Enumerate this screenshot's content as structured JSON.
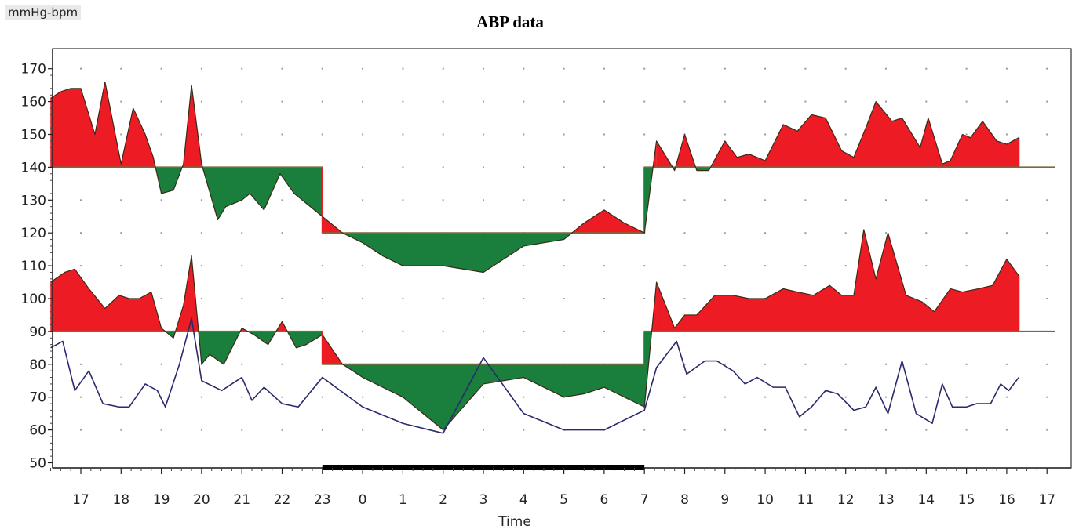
{
  "unit_label": "mmHg-bpm",
  "chart_data": {
    "type": "area",
    "title": "ABP data",
    "xlabel": "Time",
    "ylabel": "mmHg-bpm",
    "ylim": [
      50,
      170
    ],
    "xlim": [
      16.2,
      41.2
    ],
    "grid": true,
    "y_ticks": [
      50,
      60,
      70,
      80,
      90,
      100,
      110,
      120,
      130,
      140,
      150,
      160,
      170
    ],
    "x_ticks": [
      {
        "x": 17,
        "label": "17"
      },
      {
        "x": 18,
        "label": "18"
      },
      {
        "x": 19,
        "label": "19"
      },
      {
        "x": 20,
        "label": "20"
      },
      {
        "x": 21,
        "label": "21"
      },
      {
        "x": 22,
        "label": "22"
      },
      {
        "x": 23,
        "label": "23"
      },
      {
        "x": 24,
        "label": "0"
      },
      {
        "x": 25,
        "label": "1"
      },
      {
        "x": 26,
        "label": "2"
      },
      {
        "x": 27,
        "label": "3"
      },
      {
        "x": 28,
        "label": "4"
      },
      {
        "x": 29,
        "label": "5"
      },
      {
        "x": 30,
        "label": "6"
      },
      {
        "x": 31,
        "label": "7"
      },
      {
        "x": 32,
        "label": "8"
      },
      {
        "x": 33,
        "label": "9"
      },
      {
        "x": 34,
        "label": "10"
      },
      {
        "x": 35,
        "label": "11"
      },
      {
        "x": 36,
        "label": "12"
      },
      {
        "x": 37,
        "label": "13"
      },
      {
        "x": 38,
        "label": "14"
      },
      {
        "x": 39,
        "label": "15"
      },
      {
        "x": 40,
        "label": "16"
      },
      {
        "x": 41,
        "label": "17"
      }
    ],
    "sleep_period": [
      23,
      31
    ],
    "colors": {
      "above": "#ed1c24",
      "below": "#1a7f3c",
      "threshold": "#7a6a3a",
      "heart_rate": "#2a2a6e"
    },
    "thresholds": {
      "systolic": {
        "day": 140,
        "night": 120
      },
      "diastolic": {
        "day": 90,
        "night": 80
      }
    },
    "series": [
      {
        "key": "systolic",
        "points": [
          [
            16.25,
            161
          ],
          [
            16.5,
            163
          ],
          [
            16.75,
            164
          ],
          [
            17,
            164
          ],
          [
            17.35,
            150
          ],
          [
            17.6,
            166
          ],
          [
            18,
            141
          ],
          [
            18.3,
            158
          ],
          [
            18.6,
            150
          ],
          [
            18.8,
            143
          ],
          [
            19,
            132
          ],
          [
            19.3,
            133
          ],
          [
            19.55,
            141
          ],
          [
            19.75,
            165
          ],
          [
            20,
            141
          ],
          [
            20.4,
            124
          ],
          [
            20.6,
            128
          ],
          [
            21,
            130
          ],
          [
            21.2,
            132
          ],
          [
            21.55,
            127
          ],
          [
            21.95,
            138
          ],
          [
            22.3,
            132
          ],
          [
            22.7,
            128
          ],
          [
            23,
            125
          ],
          [
            23.5,
            120
          ],
          [
            24,
            117
          ],
          [
            24.5,
            113
          ],
          [
            25,
            110
          ],
          [
            26,
            110
          ],
          [
            27,
            108
          ],
          [
            28,
            116
          ],
          [
            29,
            118
          ],
          [
            29.5,
            123
          ],
          [
            30,
            127
          ],
          [
            30.5,
            123
          ],
          [
            31,
            120
          ],
          [
            31.3,
            148
          ],
          [
            31.75,
            139
          ],
          [
            32,
            150
          ],
          [
            32.3,
            139
          ],
          [
            32.6,
            139
          ],
          [
            33,
            148
          ],
          [
            33.3,
            143
          ],
          [
            33.6,
            144
          ],
          [
            34,
            142
          ],
          [
            34.45,
            153
          ],
          [
            34.8,
            151
          ],
          [
            35.15,
            156
          ],
          [
            35.5,
            155
          ],
          [
            35.9,
            145
          ],
          [
            36.2,
            143
          ],
          [
            36.5,
            152
          ],
          [
            36.75,
            160
          ],
          [
            37.15,
            154
          ],
          [
            37.4,
            155
          ],
          [
            37.85,
            146
          ],
          [
            38.05,
            155
          ],
          [
            38.4,
            141
          ],
          [
            38.6,
            142
          ],
          [
            38.9,
            150
          ],
          [
            39.1,
            149
          ],
          [
            39.4,
            154
          ],
          [
            39.75,
            148
          ],
          [
            40,
            147
          ],
          [
            40.3,
            149
          ]
        ]
      },
      {
        "key": "diastolic",
        "points": [
          [
            16.25,
            105
          ],
          [
            16.6,
            108
          ],
          [
            16.85,
            109
          ],
          [
            17.2,
            103
          ],
          [
            17.6,
            97
          ],
          [
            17.95,
            101
          ],
          [
            18.2,
            100
          ],
          [
            18.45,
            100
          ],
          [
            18.75,
            102
          ],
          [
            19,
            91
          ],
          [
            19.3,
            88
          ],
          [
            19.55,
            98
          ],
          [
            19.75,
            113
          ],
          [
            20,
            80
          ],
          [
            20.2,
            83
          ],
          [
            20.55,
            80
          ],
          [
            21,
            91
          ],
          [
            21.3,
            89
          ],
          [
            21.65,
            86
          ],
          [
            22,
            93
          ],
          [
            22.35,
            85
          ],
          [
            22.6,
            86
          ],
          [
            23,
            89
          ],
          [
            23.5,
            80
          ],
          [
            24,
            76
          ],
          [
            25,
            70
          ],
          [
            26,
            60
          ],
          [
            27,
            74
          ],
          [
            28,
            76
          ],
          [
            29,
            70
          ],
          [
            29.5,
            71
          ],
          [
            30,
            73
          ],
          [
            30.5,
            70
          ],
          [
            31,
            67
          ],
          [
            31.3,
            105
          ],
          [
            31.75,
            91
          ],
          [
            32,
            95
          ],
          [
            32.3,
            95
          ],
          [
            32.75,
            101
          ],
          [
            33.2,
            101
          ],
          [
            33.6,
            100
          ],
          [
            34,
            100
          ],
          [
            34.45,
            103
          ],
          [
            34.8,
            102
          ],
          [
            35.2,
            101
          ],
          [
            35.6,
            104
          ],
          [
            35.9,
            101
          ],
          [
            36.2,
            101
          ],
          [
            36.45,
            121
          ],
          [
            36.75,
            106
          ],
          [
            37.05,
            120
          ],
          [
            37.5,
            101
          ],
          [
            37.9,
            99
          ],
          [
            38.2,
            96
          ],
          [
            38.6,
            103
          ],
          [
            38.9,
            102
          ],
          [
            39.3,
            103
          ],
          [
            39.65,
            104
          ],
          [
            40,
            112
          ],
          [
            40.3,
            107
          ]
        ]
      },
      {
        "key": "heart_rate",
        "points": [
          [
            16.25,
            85
          ],
          [
            16.55,
            87
          ],
          [
            16.85,
            72
          ],
          [
            17.2,
            78
          ],
          [
            17.55,
            68
          ],
          [
            17.95,
            67
          ],
          [
            18.2,
            67
          ],
          [
            18.6,
            74
          ],
          [
            18.9,
            72
          ],
          [
            19.1,
            67
          ],
          [
            19.45,
            80
          ],
          [
            19.75,
            94
          ],
          [
            20,
            75
          ],
          [
            20.5,
            72
          ],
          [
            21,
            76
          ],
          [
            21.25,
            69
          ],
          [
            21.55,
            73
          ],
          [
            22,
            68
          ],
          [
            22.4,
            67
          ],
          [
            23,
            76
          ],
          [
            24,
            67
          ],
          [
            25,
            62
          ],
          [
            26,
            59
          ],
          [
            27,
            82
          ],
          [
            28,
            65
          ],
          [
            29,
            60
          ],
          [
            30,
            60
          ],
          [
            31,
            66
          ],
          [
            31.3,
            79
          ],
          [
            31.8,
            87
          ],
          [
            32.05,
            77
          ],
          [
            32.5,
            81
          ],
          [
            32.8,
            81
          ],
          [
            33.2,
            78
          ],
          [
            33.5,
            74
          ],
          [
            33.8,
            76
          ],
          [
            34.2,
            73
          ],
          [
            34.5,
            73
          ],
          [
            34.85,
            64
          ],
          [
            35.15,
            67
          ],
          [
            35.5,
            72
          ],
          [
            35.8,
            71
          ],
          [
            36.2,
            66
          ],
          [
            36.5,
            67
          ],
          [
            36.75,
            73
          ],
          [
            37.05,
            65
          ],
          [
            37.4,
            81
          ],
          [
            37.75,
            65
          ],
          [
            38.15,
            62
          ],
          [
            38.4,
            74
          ],
          [
            38.65,
            67
          ],
          [
            39,
            67
          ],
          [
            39.25,
            68
          ],
          [
            39.6,
            68
          ],
          [
            39.85,
            74
          ],
          [
            40.05,
            72
          ],
          [
            40.3,
            76
          ]
        ]
      }
    ]
  }
}
